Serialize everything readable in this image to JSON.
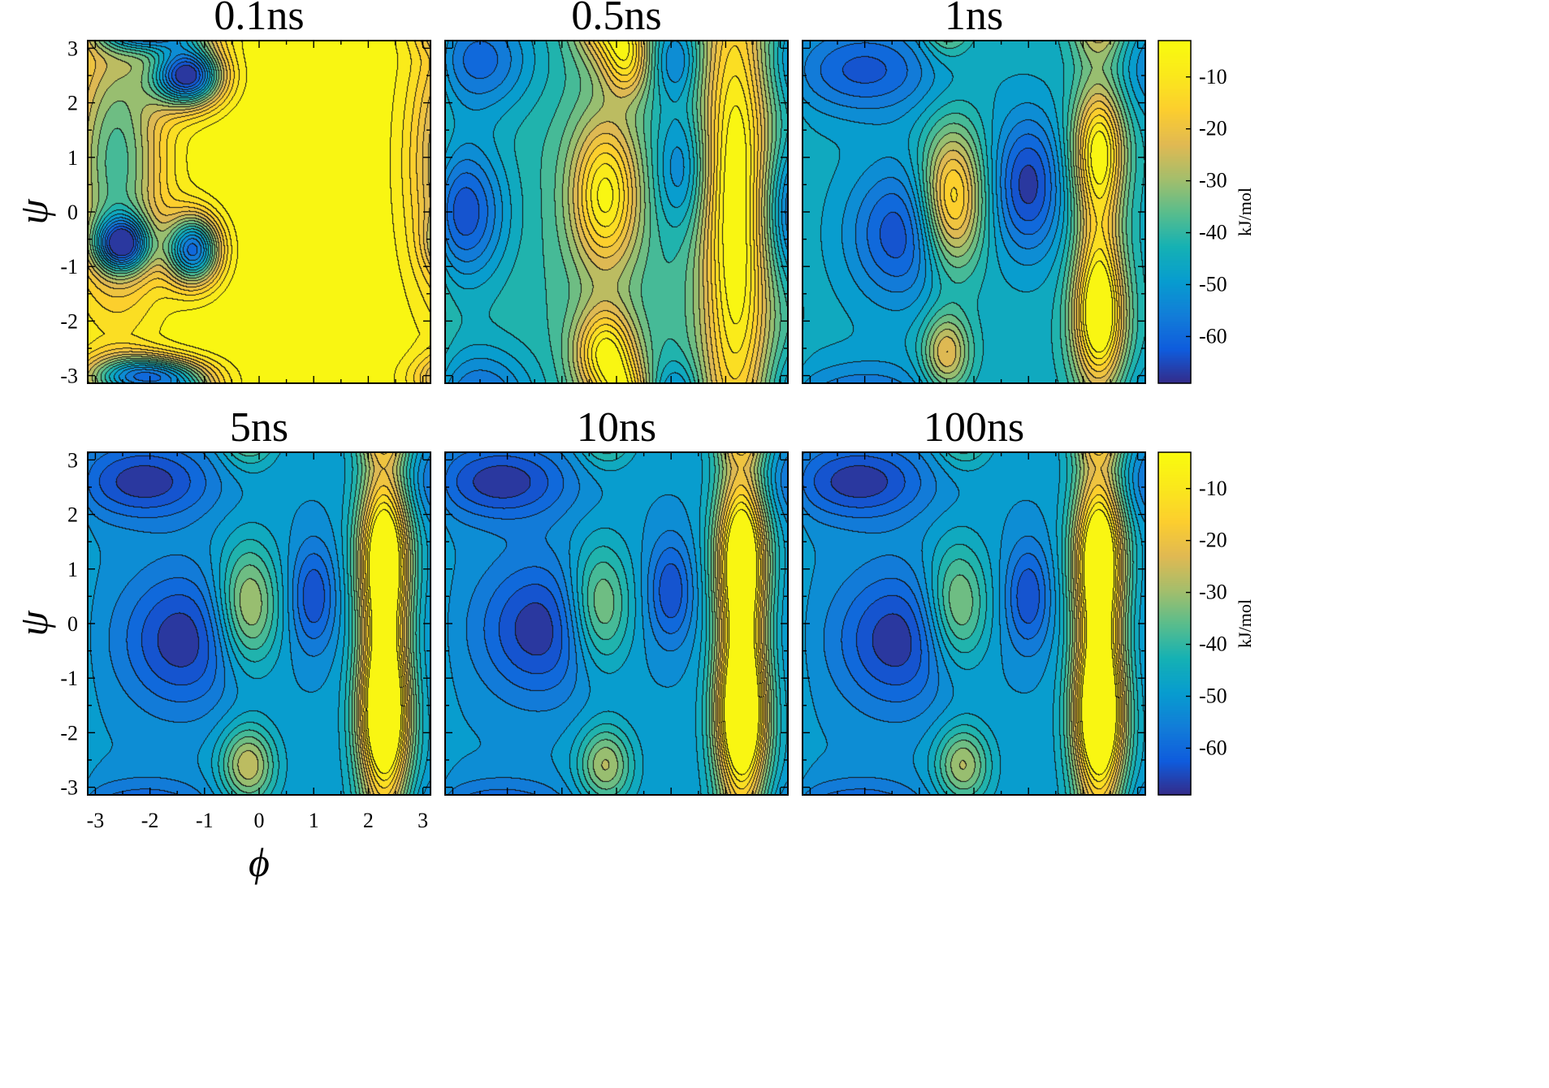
{
  "chart_data": {
    "type": "heatmap",
    "style": "filled contour maps with black contour lines, parula colormap",
    "panel_titles": [
      "0.1ns",
      "0.5ns",
      "1ns",
      "5ns",
      "10ns",
      "100ns"
    ],
    "xlabel": "ϕ",
    "ylabel": "ψ",
    "xlim": [
      -3.14,
      3.14
    ],
    "ylim": [
      -3.14,
      3.14
    ],
    "x_ticks": [
      "-3",
      "-2",
      "-1",
      "0",
      "1",
      "2",
      "3"
    ],
    "y_ticks": [
      "3",
      "2",
      "1",
      "0",
      "-1",
      "-2",
      "-3"
    ],
    "colorbar": {
      "label": "kJ/mol",
      "ticks": [
        "-10",
        "-20",
        "-30",
        "-40",
        "-50",
        "-60"
      ],
      "range": [
        -69,
        -3
      ],
      "colormap": "parula"
    },
    "panels": [
      {
        "title": "0.1ns",
        "background": -3,
        "wells": [
          {
            "phi": -1.3,
            "psi": 2.5,
            "depth": -65,
            "sx": 0.45,
            "sy": 0.4
          },
          {
            "phi": -2.5,
            "psi": -0.6,
            "depth": -48,
            "sx": 0.35,
            "sy": 0.35
          },
          {
            "phi": -1.2,
            "psi": -0.7,
            "depth": -55,
            "sx": 0.35,
            "sy": 0.45
          },
          {
            "phi": -2.6,
            "psi": 0.9,
            "depth": -35,
            "sx": 0.6,
            "sy": 1.8
          },
          {
            "phi": -2.0,
            "psi": -3.0,
            "depth": -45,
            "sx": 0.7,
            "sy": 0.25
          }
        ]
      },
      {
        "title": "0.5ns",
        "background": -40,
        "wells": [
          {
            "phi": -2.8,
            "psi": 0.0,
            "depth": -25,
            "sx": 0.55,
            "sy": 0.9
          },
          {
            "phi": -2.5,
            "psi": 2.8,
            "depth": -20,
            "sx": 0.7,
            "sy": 0.7
          },
          {
            "phi": 1.2,
            "psi": 0.8,
            "depth": -15,
            "sx": 0.35,
            "sy": 0.8
          },
          {
            "phi": 1.1,
            "psi": 2.8,
            "depth": -15,
            "sx": 0.3,
            "sy": 0.5
          },
          {
            "phi": -0.2,
            "psi": 0.3,
            "depth": 35,
            "sx": 0.45,
            "sy": 1.0
          },
          {
            "phi": -0.2,
            "psi": -2.6,
            "depth": 35,
            "sx": 0.4,
            "sy": 0.6
          },
          {
            "phi": 2.2,
            "psi": 0.0,
            "depth": 40,
            "sx": 0.45,
            "sy": 3.5
          },
          {
            "phi": 0.2,
            "psi": 2.8,
            "depth": 25,
            "sx": 0.3,
            "sy": 0.5
          }
        ]
      },
      {
        "title": "1ns",
        "background": -45,
        "wells": [
          {
            "phi": -2.0,
            "psi": 2.6,
            "depth": -18,
            "sx": 1.0,
            "sy": 0.6
          },
          {
            "phi": -1.3,
            "psi": -0.4,
            "depth": -20,
            "sx": 0.7,
            "sy": 0.9
          },
          {
            "phi": 1.0,
            "psi": 0.5,
            "depth": -22,
            "sx": 0.45,
            "sy": 0.9
          },
          {
            "phi": -0.4,
            "psi": 0.2,
            "depth": 38,
            "sx": 0.4,
            "sy": 0.9
          },
          {
            "phi": -0.5,
            "psi": -2.6,
            "depth": 25,
            "sx": 0.3,
            "sy": 0.5
          },
          {
            "phi": 2.3,
            "psi": -2.0,
            "depth": 38,
            "sx": 0.35,
            "sy": 0.9
          },
          {
            "phi": 2.3,
            "psi": 1.2,
            "depth": 32,
            "sx": 0.35,
            "sy": 0.8
          },
          {
            "phi": 2.3,
            "psi": -0.5,
            "depth": 20,
            "sx": 0.3,
            "sy": 1.5
          }
        ]
      },
      {
        "title": "5ns",
        "background": -50,
        "wells": [
          {
            "phi": -2.1,
            "psi": 2.6,
            "depth": -18,
            "sx": 0.9,
            "sy": 0.5
          },
          {
            "phi": -1.4,
            "psi": -0.3,
            "depth": -18,
            "sx": 0.8,
            "sy": 0.9
          },
          {
            "phi": 1.0,
            "psi": 0.5,
            "depth": -15,
            "sx": 0.3,
            "sy": 0.7
          },
          {
            "phi": -0.2,
            "psi": 0.3,
            "depth": 25,
            "sx": 0.4,
            "sy": 0.8
          },
          {
            "phi": -0.2,
            "psi": -2.6,
            "depth": 25,
            "sx": 0.35,
            "sy": 0.5
          },
          {
            "phi": 2.3,
            "psi": -1.8,
            "depth": 45,
            "sx": 0.35,
            "sy": 1.0
          },
          {
            "phi": 2.3,
            "psi": 1.3,
            "depth": 40,
            "sx": 0.35,
            "sy": 1.0
          },
          {
            "phi": 2.3,
            "psi": -0.3,
            "depth": 30,
            "sx": 0.3,
            "sy": 1.8
          }
        ]
      },
      {
        "title": "10ns",
        "background": -50,
        "wells": [
          {
            "phi": -2.1,
            "psi": 2.6,
            "depth": -18,
            "sx": 0.9,
            "sy": 0.5
          },
          {
            "phi": -1.4,
            "psi": -0.1,
            "depth": -18,
            "sx": 0.8,
            "sy": 0.9
          },
          {
            "phi": 1.0,
            "psi": 0.6,
            "depth": -15,
            "sx": 0.3,
            "sy": 0.7
          },
          {
            "phi": -0.3,
            "psi": 0.3,
            "depth": 22,
            "sx": 0.4,
            "sy": 0.8
          },
          {
            "phi": -0.2,
            "psi": -2.6,
            "depth": 22,
            "sx": 0.35,
            "sy": 0.5
          },
          {
            "phi": 2.3,
            "psi": -1.8,
            "depth": 46,
            "sx": 0.35,
            "sy": 1.0
          },
          {
            "phi": 2.3,
            "psi": 1.3,
            "depth": 40,
            "sx": 0.35,
            "sy": 1.0
          },
          {
            "phi": 2.3,
            "psi": -0.3,
            "depth": 30,
            "sx": 0.3,
            "sy": 1.8
          }
        ]
      },
      {
        "title": "100ns",
        "background": -50,
        "wells": [
          {
            "phi": -2.1,
            "psi": 2.6,
            "depth": -18,
            "sx": 0.9,
            "sy": 0.5
          },
          {
            "phi": -1.4,
            "psi": -0.3,
            "depth": -18,
            "sx": 0.8,
            "sy": 0.9
          },
          {
            "phi": 1.0,
            "psi": 0.5,
            "depth": -15,
            "sx": 0.3,
            "sy": 0.7
          },
          {
            "phi": -0.3,
            "psi": 0.3,
            "depth": 22,
            "sx": 0.4,
            "sy": 0.8
          },
          {
            "phi": -0.2,
            "psi": -2.6,
            "depth": 22,
            "sx": 0.35,
            "sy": 0.5
          },
          {
            "phi": 2.3,
            "psi": -1.8,
            "depth": 46,
            "sx": 0.35,
            "sy": 1.0
          },
          {
            "phi": 2.3,
            "psi": 1.3,
            "depth": 40,
            "sx": 0.35,
            "sy": 1.0
          },
          {
            "phi": 2.3,
            "psi": -0.3,
            "depth": 30,
            "sx": 0.3,
            "sy": 1.8
          }
        ]
      }
    ]
  }
}
